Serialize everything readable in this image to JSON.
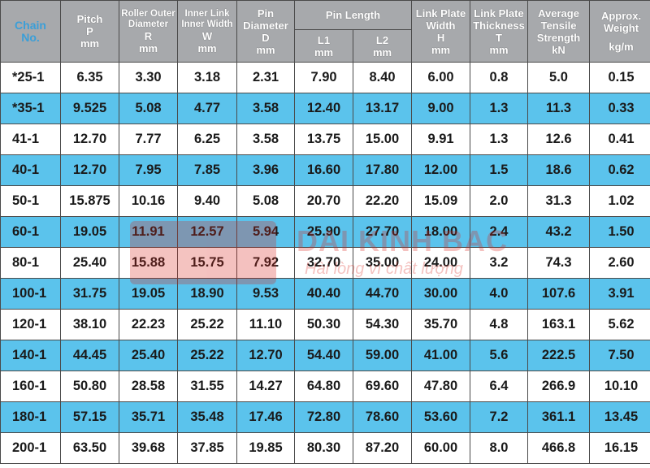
{
  "header": {
    "chain": {
      "line1": "Chain",
      "line2": "No."
    },
    "pitch": {
      "title": "Pitch",
      "symbol": "P",
      "unit": "mm"
    },
    "roller": {
      "title1": "Roller Outer",
      "title2": "Diameter",
      "symbol": "R",
      "unit": "mm"
    },
    "inner_link": {
      "title1": "Inner Link",
      "title2": "Inner Width",
      "symbol": "W",
      "unit": "mm"
    },
    "pin_diameter": {
      "title1": "Pin",
      "title2": "Diameter",
      "symbol": "D",
      "unit": "mm"
    },
    "pin_length": {
      "title": "Pin Length",
      "l1": "L1",
      "l2": "L2",
      "unit1": "mm",
      "unit2": "mm"
    },
    "plate_width": {
      "title1": "Link Plate",
      "title2": "Width",
      "symbol": "H",
      "unit": "mm"
    },
    "plate_thickness": {
      "title1": "Link Plate",
      "title2": "Thickness",
      "symbol": "T",
      "unit": "mm"
    },
    "tensile": {
      "title1": "Average",
      "title2": "Tensile",
      "title3": "Strength",
      "unit": "kN"
    },
    "weight": {
      "title1": "Approx.",
      "title2": "Weight",
      "unit": "kg/m"
    }
  },
  "rows": [
    [
      "*25-1",
      "6.35",
      "3.30",
      "3.18",
      "2.31",
      "7.90",
      "8.40",
      "6.00",
      "0.8",
      "5.0",
      "0.15"
    ],
    [
      "*35-1",
      "9.525",
      "5.08",
      "4.77",
      "3.58",
      "12.40",
      "13.17",
      "9.00",
      "1.3",
      "11.3",
      "0.33"
    ],
    [
      "41-1",
      "12.70",
      "7.77",
      "6.25",
      "3.58",
      "13.75",
      "15.00",
      "9.91",
      "1.3",
      "12.6",
      "0.41"
    ],
    [
      "40-1",
      "12.70",
      "7.95",
      "7.85",
      "3.96",
      "16.60",
      "17.80",
      "12.00",
      "1.5",
      "18.6",
      "0.62"
    ],
    [
      "50-1",
      "15.875",
      "10.16",
      "9.40",
      "5.08",
      "20.70",
      "22.20",
      "15.09",
      "2.0",
      "31.3",
      "1.02"
    ],
    [
      "60-1",
      "19.05",
      "11.91",
      "12.57",
      "5.94",
      "25.90",
      "27.70",
      "18.00",
      "2.4",
      "43.2",
      "1.50"
    ],
    [
      "80-1",
      "25.40",
      "15.88",
      "15.75",
      "7.92",
      "32.70",
      "35.00",
      "24.00",
      "3.2",
      "74.3",
      "2.60"
    ],
    [
      "100-1",
      "31.75",
      "19.05",
      "18.90",
      "9.53",
      "40.40",
      "44.70",
      "30.00",
      "4.0",
      "107.6",
      "3.91"
    ],
    [
      "120-1",
      "38.10",
      "22.23",
      "25.22",
      "11.10",
      "50.30",
      "54.30",
      "35.70",
      "4.8",
      "163.1",
      "5.62"
    ],
    [
      "140-1",
      "44.45",
      "25.40",
      "25.22",
      "12.70",
      "54.40",
      "59.00",
      "41.00",
      "5.6",
      "222.5",
      "7.50"
    ],
    [
      "160-1",
      "50.80",
      "28.58",
      "31.55",
      "14.27",
      "64.80",
      "69.60",
      "47.80",
      "6.4",
      "266.9",
      "10.10"
    ],
    [
      "180-1",
      "57.15",
      "35.71",
      "35.48",
      "17.46",
      "72.80",
      "78.60",
      "53.60",
      "7.2",
      "361.1",
      "13.45"
    ],
    [
      "200-1",
      "63.50",
      "39.68",
      "37.85",
      "19.85",
      "80.30",
      "87.20",
      "60.00",
      "8.0",
      "466.8",
      "16.15"
    ]
  ],
  "watermark": {
    "brand": "DAI KINH BAC",
    "slogan": "Hài lòng vì chất lượng"
  },
  "colors": {
    "header_bg": "#a7a9ac",
    "alt_row": "#5bc3ec",
    "chain_header_text": "#3b9fd8",
    "watermark": "#d9261c"
  }
}
